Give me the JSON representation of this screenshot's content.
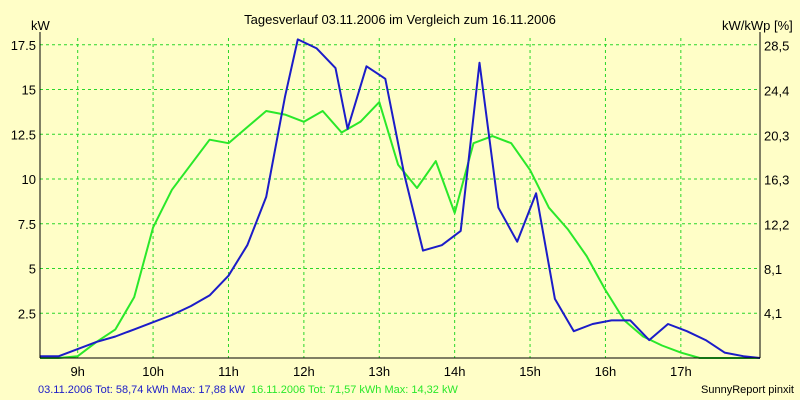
{
  "chart_data": {
    "type": "line",
    "title": "Tagesverlauf 03.11.2006 im Vergleich zum 16.11.2006",
    "ylabel": "kW",
    "y2label": "kW/kWp [%]",
    "xlim": [
      8.5,
      18.05
    ],
    "ylim": [
      0,
      17.88
    ],
    "y2lim": [
      0,
      29.2
    ],
    "x_ticks": [
      9,
      10,
      11,
      12,
      13,
      14,
      15,
      16,
      17
    ],
    "x_tick_labels": [
      "9h",
      "10h",
      "11h",
      "12h",
      "13h",
      "14h",
      "15h",
      "16h",
      "17h"
    ],
    "y_ticks": [
      2.5,
      5,
      7.5,
      10,
      12.5,
      15,
      17.5
    ],
    "y_tick_labels": [
      "2.5",
      "5",
      "7.5",
      "10",
      "12.5",
      "15",
      "17.5"
    ],
    "y2_ticks": [
      4.1,
      8.1,
      12.2,
      16.3,
      20.3,
      24.4,
      28.5
    ],
    "y2_tick_labels": [
      "4,1",
      "8,1",
      "12,2",
      "16,3",
      "20,3",
      "24,4",
      "28,5"
    ],
    "grid": true,
    "series": [
      {
        "name": "03.11.2006",
        "color": "#1c1cc8",
        "x": [
          8.5,
          8.75,
          9.0,
          9.25,
          9.5,
          9.75,
          10.0,
          10.25,
          10.5,
          10.75,
          11.0,
          11.25,
          11.5,
          11.75,
          11.92,
          12.17,
          12.42,
          12.58,
          12.83,
          13.08,
          13.33,
          13.58,
          13.83,
          14.08,
          14.33,
          14.58,
          14.83,
          15.08,
          15.33,
          15.58,
          15.83,
          16.08,
          16.33,
          16.58,
          16.83,
          17.08,
          17.33,
          17.58,
          17.83,
          18.05
        ],
        "values": [
          0.1,
          0.1,
          0.5,
          0.9,
          1.2,
          1.6,
          2.0,
          2.4,
          2.9,
          3.5,
          4.6,
          6.3,
          9.0,
          14.6,
          17.8,
          17.3,
          16.2,
          12.8,
          16.3,
          15.6,
          10.3,
          6.0,
          6.3,
          7.1,
          16.5,
          8.4,
          6.5,
          9.2,
          3.3,
          1.5,
          1.9,
          2.1,
          2.1,
          1.0,
          1.9,
          1.5,
          1.0,
          0.3,
          0.1,
          0.0
        ]
      },
      {
        "name": "16.11.2006",
        "color": "#2ae82a",
        "x": [
          8.5,
          8.75,
          9.0,
          9.25,
          9.5,
          9.75,
          10.0,
          10.25,
          10.5,
          10.75,
          11.0,
          11.25,
          11.5,
          11.75,
          12.0,
          12.25,
          12.5,
          12.75,
          13.0,
          13.25,
          13.5,
          13.75,
          14.0,
          14.25,
          14.5,
          14.75,
          15.0,
          15.25,
          15.5,
          15.75,
          16.0,
          16.25,
          16.5,
          16.75,
          17.0,
          17.25,
          17.5,
          17.75,
          18.05
        ],
        "values": [
          0.0,
          0.0,
          0.1,
          0.9,
          1.6,
          3.4,
          7.3,
          9.4,
          10.8,
          12.2,
          12.0,
          12.9,
          13.8,
          13.6,
          13.2,
          13.8,
          12.6,
          13.2,
          14.3,
          10.8,
          9.5,
          11.0,
          8.1,
          12.0,
          12.4,
          12.0,
          10.5,
          8.4,
          7.2,
          5.7,
          3.8,
          2.1,
          1.2,
          0.7,
          0.3,
          0.0,
          0.0,
          0.0,
          0.0
        ]
      }
    ],
    "footer": {
      "series1_text": "03.11.2006 Tot: 58,74 kWh Max: 17,88 kW",
      "series2_text": "16.11.2006 Tot: 71,57 kWh Max: 14,32 kW",
      "credit": "SunnyReport pinxit"
    },
    "colors": {
      "background": "#fffec7",
      "grid": "#2ad62a",
      "axis": "#000000"
    }
  }
}
